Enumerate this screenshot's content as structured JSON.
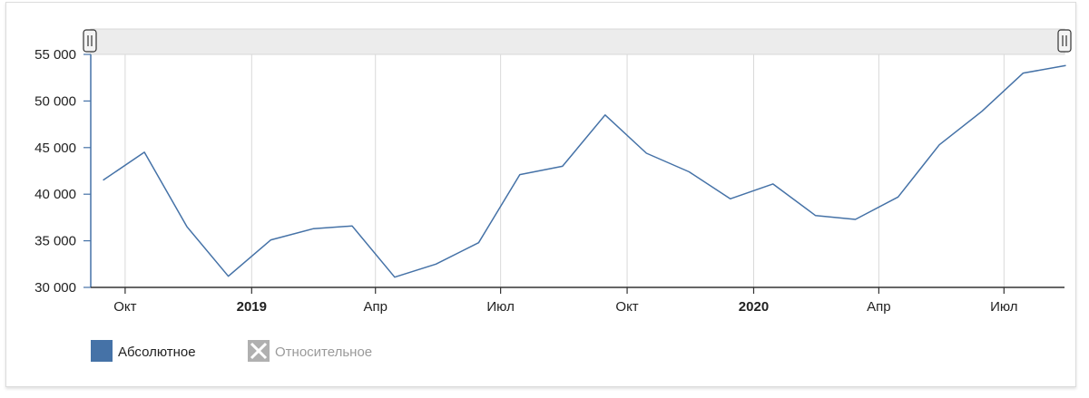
{
  "chart_data": {
    "type": "line",
    "title": "",
    "xlabel": "",
    "ylabel": "",
    "ylim": [
      30000,
      55000
    ],
    "y_ticks": [
      {
        "value": 30000,
        "label": "30 000"
      },
      {
        "value": 35000,
        "label": "35 000"
      },
      {
        "value": 40000,
        "label": "40 000"
      },
      {
        "value": 45000,
        "label": "45 000"
      },
      {
        "value": 50000,
        "label": "50 000"
      },
      {
        "value": 55000,
        "label": "55 000"
      }
    ],
    "x_range": [
      "2018-09-06",
      "2020-08-14"
    ],
    "x_ticks": [
      {
        "date": "2018-10-01",
        "label": "Окт",
        "bold": false
      },
      {
        "date": "2019-01-01",
        "label": "2019",
        "bold": true
      },
      {
        "date": "2019-04-01",
        "label": "Апр",
        "bold": false
      },
      {
        "date": "2019-07-01",
        "label": "Июл",
        "bold": false
      },
      {
        "date": "2019-10-01",
        "label": "Окт",
        "bold": false
      },
      {
        "date": "2020-01-01",
        "label": "2020",
        "bold": true
      },
      {
        "date": "2020-04-01",
        "label": "Апр",
        "bold": false
      },
      {
        "date": "2020-07-01",
        "label": "Июл",
        "bold": false
      }
    ],
    "grid": true,
    "navigator": true,
    "series": [
      {
        "name": "Абсолютное",
        "color": "#4572a7",
        "visible": true,
        "points": [
          {
            "x": "2018-09-15",
            "y": 41500
          },
          {
            "x": "2018-10-15",
            "y": 44500
          },
          {
            "x": "2018-11-15",
            "y": 36500
          },
          {
            "x": "2018-12-15",
            "y": 31200
          },
          {
            "x": "2019-01-15",
            "y": 35100
          },
          {
            "x": "2019-02-15",
            "y": 36300
          },
          {
            "x": "2019-03-15",
            "y": 36600
          },
          {
            "x": "2019-04-15",
            "y": 31100
          },
          {
            "x": "2019-05-15",
            "y": 32500
          },
          {
            "x": "2019-06-15",
            "y": 34800
          },
          {
            "x": "2019-07-15",
            "y": 42100
          },
          {
            "x": "2019-08-15",
            "y": 43000
          },
          {
            "x": "2019-09-15",
            "y": 48500
          },
          {
            "x": "2019-10-15",
            "y": 44400
          },
          {
            "x": "2019-11-15",
            "y": 42400
          },
          {
            "x": "2019-12-15",
            "y": 39500
          },
          {
            "x": "2020-01-15",
            "y": 41100
          },
          {
            "x": "2020-02-15",
            "y": 37700
          },
          {
            "x": "2020-03-15",
            "y": 37300
          },
          {
            "x": "2020-04-15",
            "y": 39700
          },
          {
            "x": "2020-05-15",
            "y": 45300
          },
          {
            "x": "2020-06-15",
            "y": 48900
          },
          {
            "x": "2020-07-15",
            "y": 53000
          },
          {
            "x": "2020-08-15",
            "y": 53800
          }
        ]
      },
      {
        "name": "Относительное",
        "color": "#b0b0b0",
        "visible": false,
        "points": []
      }
    ],
    "legend_position": "bottom-left"
  }
}
